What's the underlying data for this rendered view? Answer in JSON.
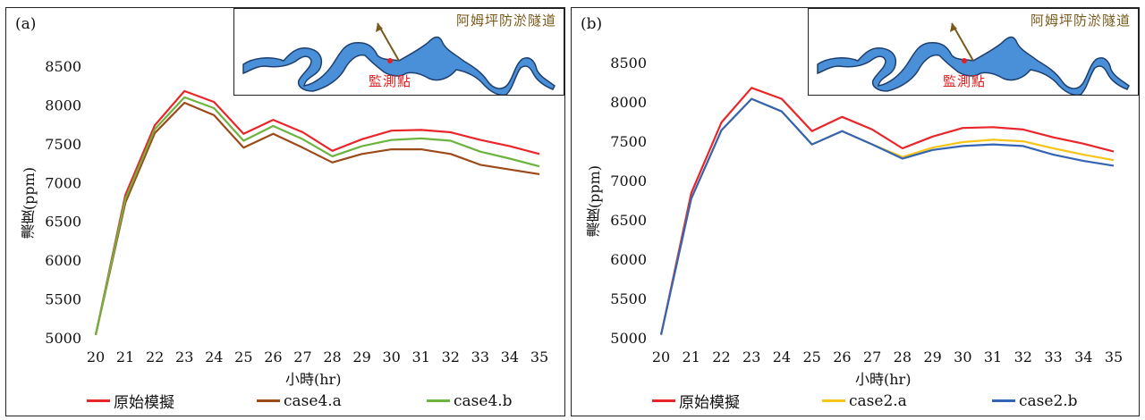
{
  "chart_data": [
    {
      "type": "line",
      "panel_label": "(a)",
      "xlabel": "小時(hr)",
      "ylabel": "濃度(ppm)",
      "categories": [
        "20",
        "21",
        "22",
        "23",
        "24",
        "25",
        "26",
        "27",
        "28",
        "29",
        "30",
        "31",
        "32",
        "33",
        "34",
        "35"
      ],
      "ylim": [
        5000,
        8500
      ],
      "yticks": [
        "5000",
        "5500",
        "6000",
        "6500",
        "7000",
        "7500",
        "8000",
        "8500"
      ],
      "grid": false,
      "legend_position": "bottom",
      "series": [
        {
          "name": "原始模擬",
          "color": "#e8262a",
          "values": [
            5050,
            6850,
            7750,
            8190,
            8050,
            7640,
            7820,
            7660,
            7420,
            7570,
            7680,
            7690,
            7660,
            7560,
            7480,
            7380
          ]
        },
        {
          "name": "case4.a",
          "color": "#9c4a1a",
          "values": [
            5050,
            6750,
            7650,
            8040,
            7880,
            7460,
            7640,
            7460,
            7270,
            7380,
            7440,
            7440,
            7380,
            7240,
            7180,
            7120
          ]
        },
        {
          "name": "case4.b",
          "color": "#6cb33f",
          "values": [
            5050,
            6800,
            7700,
            8110,
            7970,
            7550,
            7740,
            7570,
            7350,
            7480,
            7560,
            7580,
            7550,
            7410,
            7320,
            7220
          ]
        }
      ],
      "inset": {
        "tunnel_label": "阿姆坪防淤隧道",
        "monitor_label": "監測點"
      }
    },
    {
      "type": "line",
      "panel_label": "(b)",
      "xlabel": "小時(hr)",
      "ylabel": "濃度(ppm)",
      "categories": [
        "20",
        "21",
        "22",
        "23",
        "24",
        "25",
        "26",
        "27",
        "28",
        "29",
        "30",
        "31",
        "32",
        "33",
        "34",
        "35"
      ],
      "ylim": [
        5000,
        8500
      ],
      "yticks": [
        "5000",
        "5500",
        "6000",
        "6500",
        "7000",
        "7500",
        "8000",
        "8500"
      ],
      "grid": false,
      "legend_position": "bottom",
      "series": [
        {
          "name": "原始模擬",
          "color": "#e8262a",
          "values": [
            5050,
            6850,
            7750,
            8190,
            8050,
            7640,
            7820,
            7660,
            7420,
            7570,
            7680,
            7690,
            7660,
            7560,
            7480,
            7380
          ]
        },
        {
          "name": "case2.a",
          "color": "#f5c518",
          "values": [
            5050,
            6780,
            7650,
            8050,
            7890,
            7470,
            7640,
            7470,
            7310,
            7430,
            7500,
            7530,
            7510,
            7420,
            7340,
            7270
          ]
        },
        {
          "name": "case2.b",
          "color": "#3464b4",
          "values": [
            5050,
            6780,
            7650,
            8050,
            7890,
            7470,
            7640,
            7470,
            7290,
            7400,
            7450,
            7470,
            7450,
            7340,
            7260,
            7200
          ]
        }
      ],
      "inset": {
        "tunnel_label": "阿姆坪防淤隧道",
        "monitor_label": "監測點"
      }
    }
  ]
}
